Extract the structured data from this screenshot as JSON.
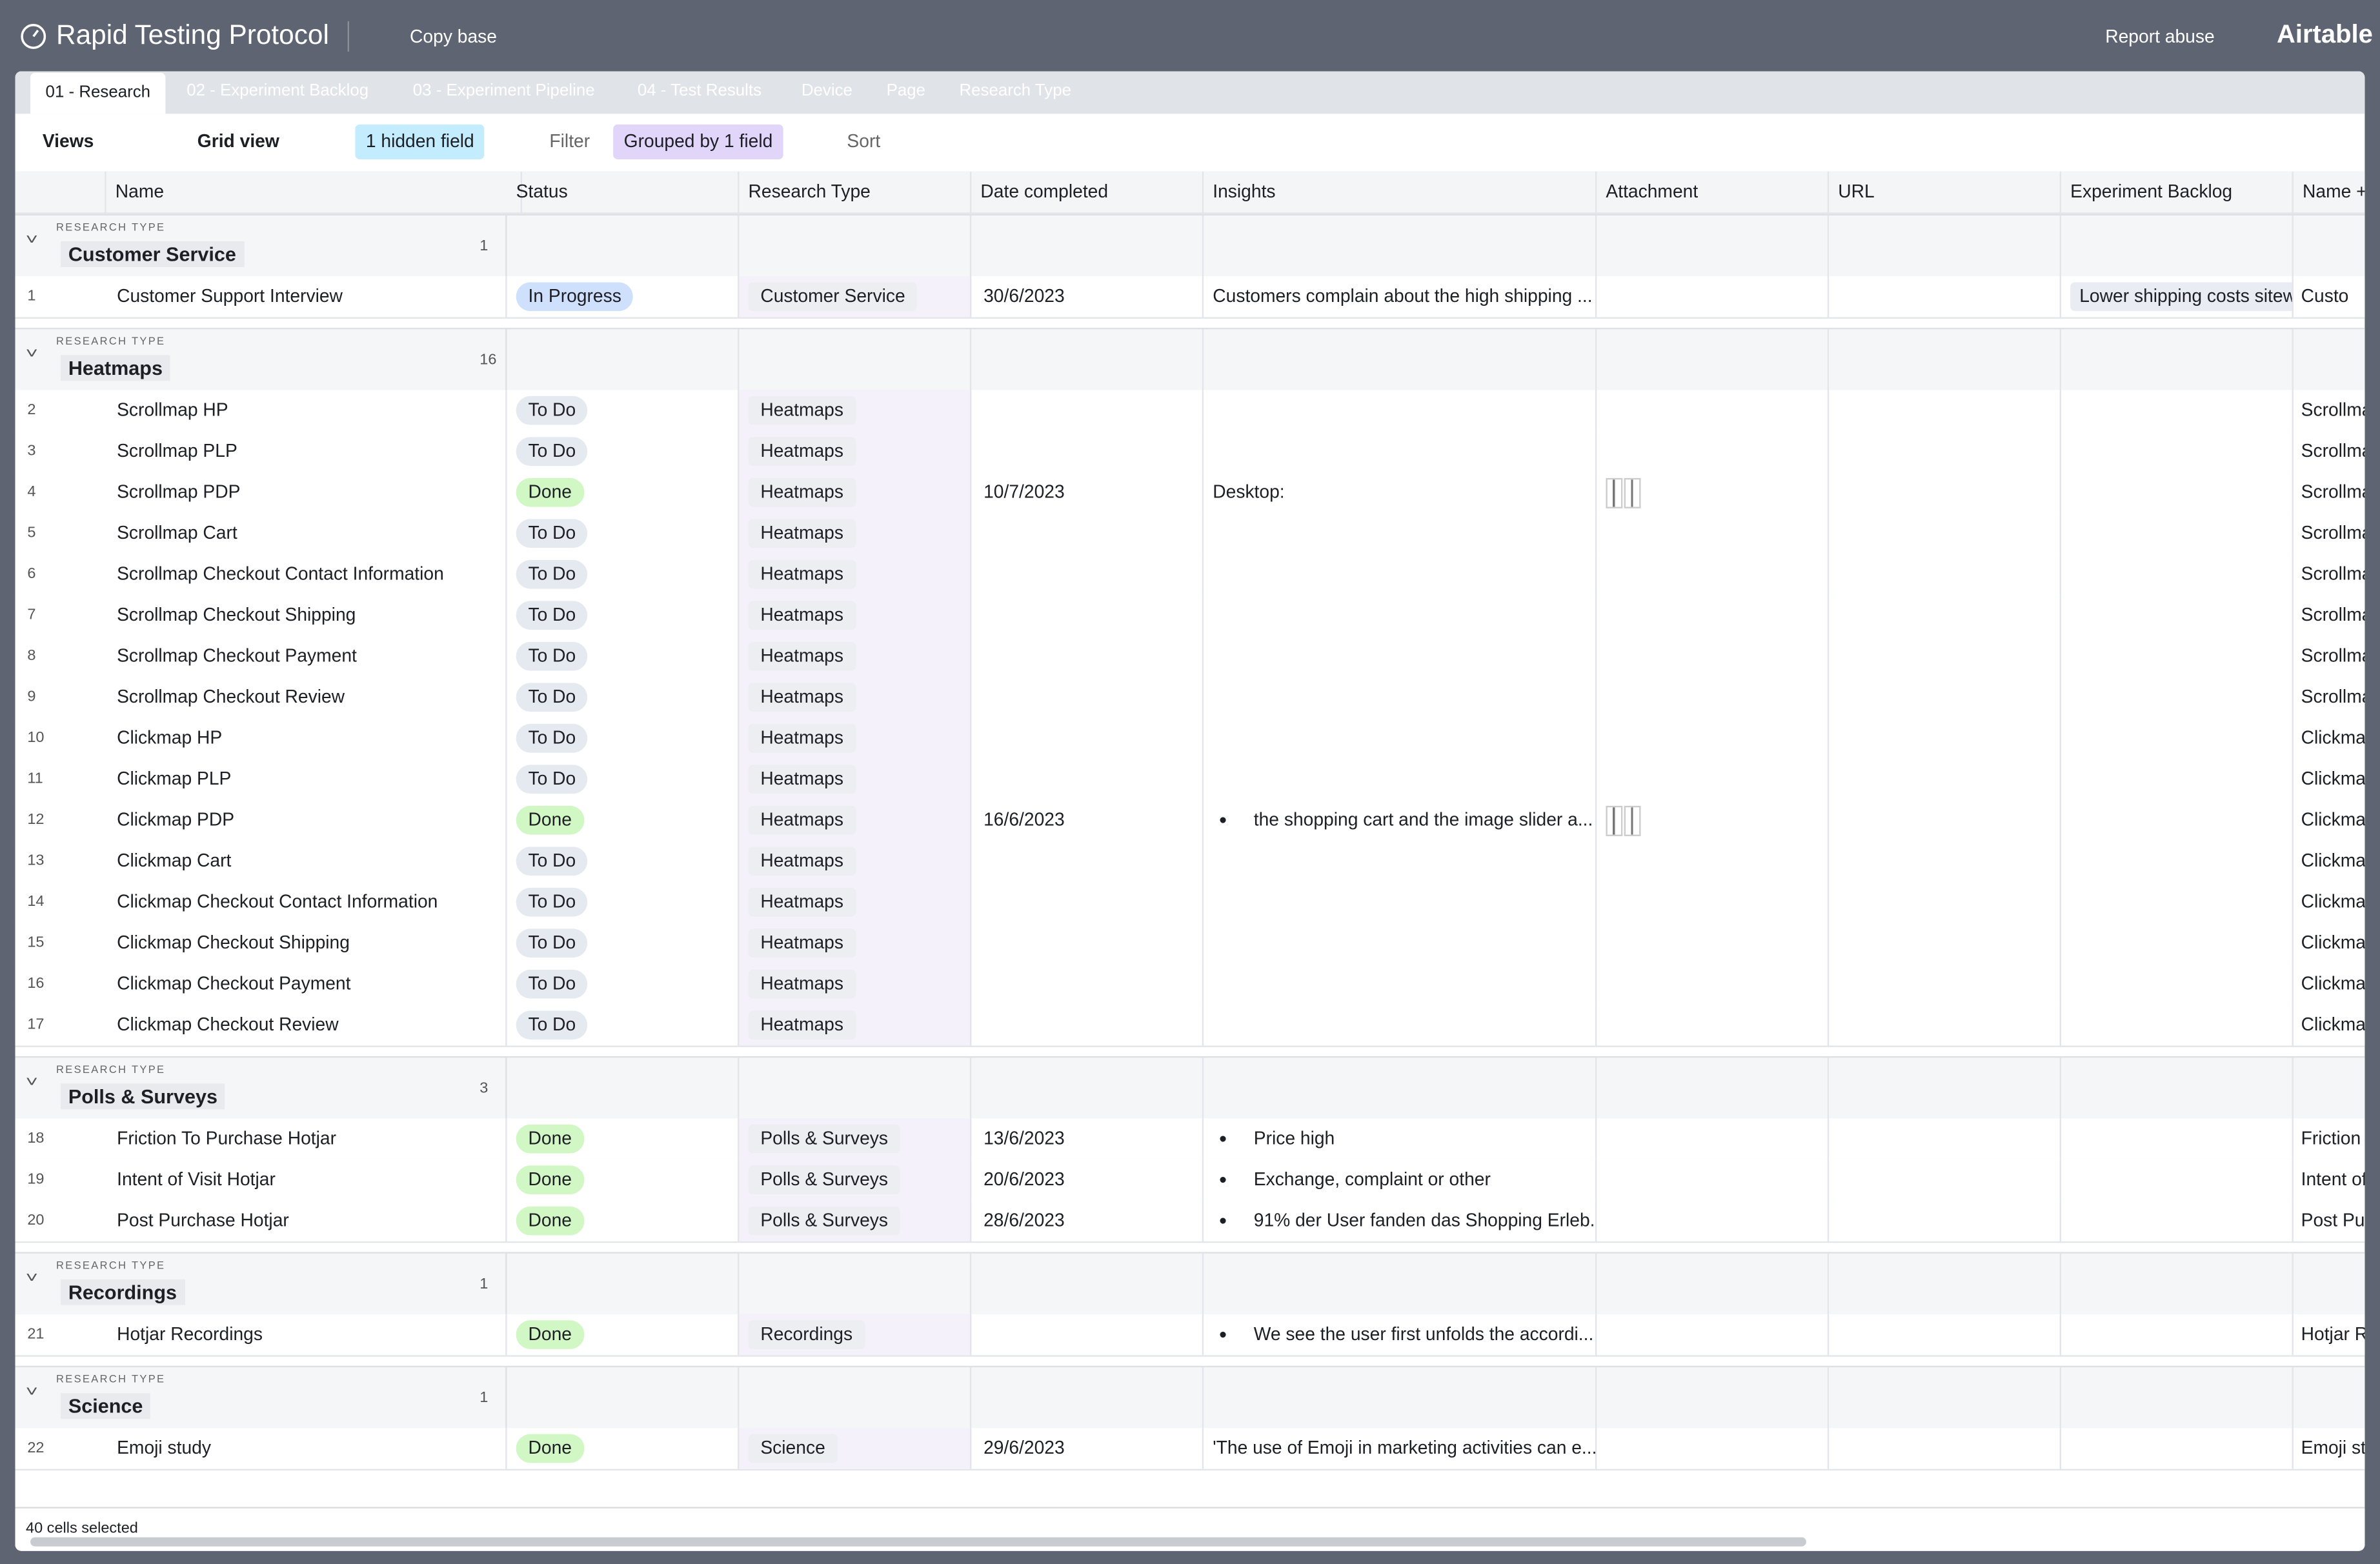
{
  "header": {
    "title": "Rapid Testing Protocol",
    "copy": "Copy base",
    "report": "Report abuse",
    "brand": "Airtable"
  },
  "tabs": [
    "01 - Research",
    "02 - Experiment Backlog",
    "03 - Experiment Pipeline",
    "04 - Test Results",
    "Device",
    "Page",
    "Research Type"
  ],
  "toolbar": {
    "views": "Views",
    "grid": "Grid view",
    "hidden": "1 hidden field",
    "filter": "Filter",
    "grouped": "Grouped by 1 field",
    "sort": "Sort"
  },
  "columns": [
    "Name",
    "Status",
    "Research Type",
    "Date completed",
    "Insights",
    "Attachment",
    "URL",
    "Experiment Backlog",
    "Name +"
  ],
  "group_label": "RESEARCH TYPE",
  "groups": [
    {
      "name": "Customer Service",
      "count": 1,
      "rows": [
        {
          "num": 1,
          "name": "Customer Support Interview",
          "status": "In Progress",
          "type": "Customer Service",
          "date": "30/6/2023",
          "insights": "Customers complain about the high shipping ...",
          "backlog": "Lower shipping costs sitewi",
          "last": "Custo"
        }
      ]
    },
    {
      "name": "Heatmaps",
      "count": 16,
      "rows": [
        {
          "num": 2,
          "name": "Scrollmap HP",
          "status": "To Do",
          "type": "Heatmaps",
          "last": "Scrollma"
        },
        {
          "num": 3,
          "name": "Scrollmap PLP",
          "status": "To Do",
          "type": "Heatmaps",
          "last": "Scrollma"
        },
        {
          "num": 4,
          "name": "Scrollmap PDP",
          "status": "Done",
          "type": "Heatmaps",
          "date": "10/7/2023",
          "insights": "Desktop:",
          "attachment": true,
          "last": "Scrollma"
        },
        {
          "num": 5,
          "name": "Scrollmap Cart",
          "status": "To Do",
          "type": "Heatmaps",
          "last": "Scrollma"
        },
        {
          "num": 6,
          "name": "Scrollmap Checkout Contact Information",
          "status": "To Do",
          "type": "Heatmaps",
          "last": "Scrollma"
        },
        {
          "num": 7,
          "name": "Scrollmap Checkout Shipping",
          "status": "To Do",
          "type": "Heatmaps",
          "last": "Scrollma"
        },
        {
          "num": 8,
          "name": "Scrollmap Checkout Payment",
          "status": "To Do",
          "type": "Heatmaps",
          "last": "Scrollma"
        },
        {
          "num": 9,
          "name": "Scrollmap Checkout Review",
          "status": "To Do",
          "type": "Heatmaps",
          "last": "Scrollma"
        },
        {
          "num": 10,
          "name": "Clickmap HP",
          "status": "To Do",
          "type": "Heatmaps",
          "last": "Clickma"
        },
        {
          "num": 11,
          "name": "Clickmap PLP",
          "status": "To Do",
          "type": "Heatmaps",
          "last": "Clickma"
        },
        {
          "num": 12,
          "name": "Clickmap PDP",
          "status": "Done",
          "type": "Heatmaps",
          "date": "16/6/2023",
          "insights": "the shopping cart and the image slider a...",
          "bullet": true,
          "attachment": true,
          "last": "Clickma"
        },
        {
          "num": 13,
          "name": "Clickmap Cart",
          "status": "To Do",
          "type": "Heatmaps",
          "last": "Clickma"
        },
        {
          "num": 14,
          "name": "Clickmap Checkout Contact Information",
          "status": "To Do",
          "type": "Heatmaps",
          "last": "Clickma"
        },
        {
          "num": 15,
          "name": "Clickmap Checkout Shipping",
          "status": "To Do",
          "type": "Heatmaps",
          "last": "Clickma"
        },
        {
          "num": 16,
          "name": "Clickmap Checkout Payment",
          "status": "To Do",
          "type": "Heatmaps",
          "last": "Clickma"
        },
        {
          "num": 17,
          "name": "Clickmap Checkout Review",
          "status": "To Do",
          "type": "Heatmaps",
          "last": "Clickma"
        }
      ]
    },
    {
      "name": "Polls & Surveys",
      "count": 3,
      "rows": [
        {
          "num": 18,
          "name": "Friction To Purchase Hotjar",
          "status": "Done",
          "type": "Polls & Surveys",
          "date": "13/6/2023",
          "insights": "Price high",
          "bullet": true,
          "last": "Friction"
        },
        {
          "num": 19,
          "name": "Intent of Visit Hotjar",
          "status": "Done",
          "type": "Polls & Surveys",
          "date": "20/6/2023",
          "insights": "Exchange, complaint or other",
          "bullet": true,
          "last": "Intent of"
        },
        {
          "num": 20,
          "name": "Post Purchase Hotjar",
          "status": "Done",
          "type": "Polls & Surveys",
          "date": "28/6/2023",
          "insights": "91% der User fanden das Shopping Erleb...",
          "bullet": true,
          "last": "Post Pur"
        }
      ]
    },
    {
      "name": "Recordings",
      "count": 1,
      "rows": [
        {
          "num": 21,
          "name": "Hotjar Recordings",
          "status": "Done",
          "type": "Recordings",
          "insights": "We see the user first unfolds the accordi...",
          "bullet": true,
          "last": "Hotjar R"
        }
      ]
    },
    {
      "name": "Science",
      "count": 1,
      "rows": [
        {
          "num": 22,
          "name": "Emoji study",
          "status": "Done",
          "type": "Science",
          "date": "29/6/2023",
          "insights": "'The use of Emoji in marketing activities can e...",
          "last": "Emoji st"
        }
      ]
    }
  ],
  "footer": "40 cells selected"
}
